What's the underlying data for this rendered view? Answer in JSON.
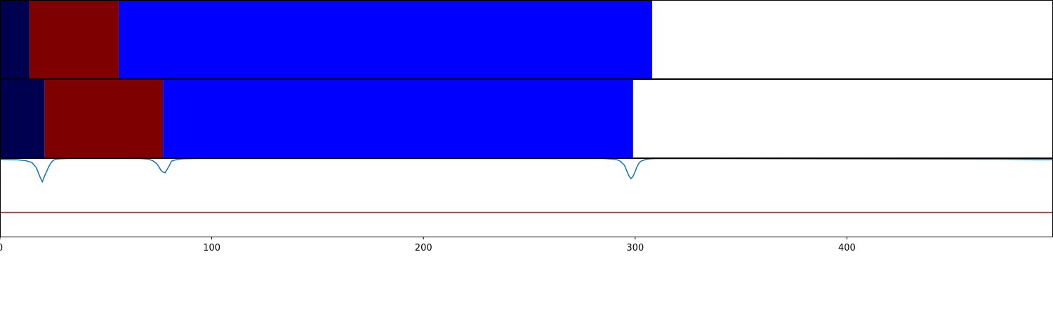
{
  "chart_data": [
    {
      "type": "bar",
      "orientation": "horizontal-stacked-segments",
      "xlim": [
        0,
        497
      ],
      "segments": [
        {
          "start": 0,
          "end": 14,
          "color": "#000050"
        },
        {
          "start": 14,
          "end": 56,
          "color": "#7f0000"
        },
        {
          "start": 56,
          "end": 308,
          "color": "#0000ff"
        }
      ]
    },
    {
      "type": "bar",
      "orientation": "horizontal-stacked-segments",
      "xlim": [
        0,
        497
      ],
      "segments": [
        {
          "start": 0,
          "end": 21,
          "color": "#000050"
        },
        {
          "start": 21,
          "end": 77,
          "color": "#7f0000"
        },
        {
          "start": 77,
          "end": 299,
          "color": "#0000ff"
        }
      ]
    },
    {
      "type": "line",
      "xlim": [
        0,
        497
      ],
      "ylim": [
        -0.3,
        1.0
      ],
      "x_ticks": [
        0,
        100,
        200,
        300,
        400
      ],
      "x_tick_labels": [
        "0",
        "100",
        "200",
        "300",
        "400"
      ],
      "threshold": {
        "value": 0.1,
        "color": "#d62728"
      },
      "series": [
        {
          "color": "#1f77b4",
          "x": [
            0,
            8,
            12,
            15,
            17,
            18,
            19,
            20,
            21,
            22,
            23,
            24,
            25,
            26,
            28,
            32,
            66,
            70,
            72,
            74,
            75,
            76,
            77,
            78,
            79,
            80,
            81,
            83,
            86,
            92,
            285,
            291,
            293,
            295,
            296,
            297,
            298,
            299,
            300,
            301,
            302,
            303,
            305,
            307,
            310,
            465,
            472,
            480,
            490,
            497
          ],
          "y": [
            0.98,
            0.975,
            0.96,
            0.93,
            0.85,
            0.77,
            0.68,
            0.61,
            0.7,
            0.78,
            0.86,
            0.92,
            0.96,
            0.98,
            0.99,
            0.995,
            0.995,
            0.985,
            0.96,
            0.91,
            0.86,
            0.8,
            0.77,
            0.76,
            0.82,
            0.88,
            0.95,
            0.975,
            0.99,
            0.995,
            0.995,
            0.98,
            0.95,
            0.88,
            0.79,
            0.71,
            0.66,
            0.7,
            0.78,
            0.87,
            0.93,
            0.955,
            0.98,
            0.99,
            0.995,
            0.985,
            0.985,
            0.982,
            0.978,
            0.978
          ]
        }
      ]
    }
  ]
}
